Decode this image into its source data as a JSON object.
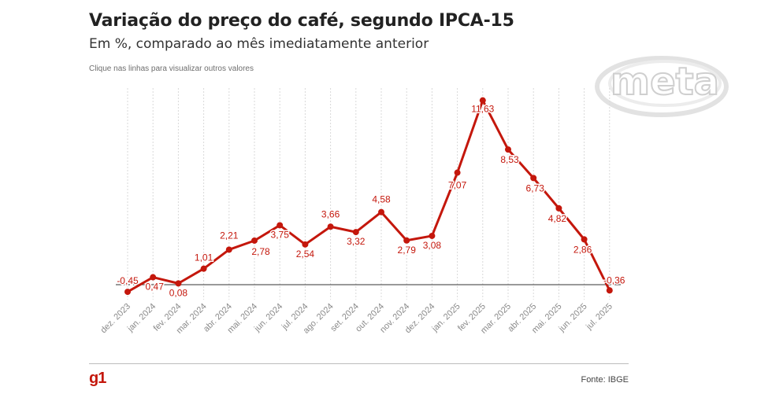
{
  "title": "Variação do preço do café, segundo IPCA-15",
  "subtitle": "Em %, comparado ao mês imediatamente anterior",
  "hint": "Clique nas linhas para visualizar outros valores",
  "source": "Fonte: IBGE",
  "logo": "g1",
  "watermark_text": "meta",
  "colors": {
    "series": "#c4170c",
    "baseline": "#333333",
    "grid": "#d9d9d9",
    "tick_label": "#8a8a8a"
  },
  "chart_data": {
    "type": "line",
    "title": "Variação do preço do café, segundo IPCA-15",
    "subtitle": "Em %, comparado ao mês imediatamente anterior",
    "xlabel": "",
    "ylabel": "",
    "ylim": [
      -0.5,
      12
    ],
    "grid": "vertical dotted",
    "legend": "none",
    "categories": [
      "dez. 2023",
      "jan. 2024",
      "fev. 2024",
      "mar. 2024",
      "abr. 2024",
      "mai. 2024",
      "jun. 2024",
      "jul. 2024",
      "ago. 2024",
      "set. 2024",
      "out. 2024",
      "nov. 2024",
      "dez. 2024",
      "jan. 2025",
      "fev. 2025",
      "mar. 2025",
      "abr. 2025",
      "mai. 2025",
      "jun. 2025",
      "jul. 2025"
    ],
    "values": [
      -0.45,
      0.47,
      0.08,
      1.01,
      2.21,
      2.78,
      3.75,
      2.54,
      3.66,
      3.32,
      4.58,
      2.79,
      3.08,
      7.07,
      11.63,
      8.53,
      6.73,
      4.82,
      2.86,
      -0.36
    ],
    "labels": [
      "-0,45",
      "0,47",
      "0,08",
      "1,01",
      "2,21",
      "2,78",
      "3,75",
      "2,54",
      "3,66",
      "3,32",
      "4,58",
      "2,79",
      "3,08",
      "7,07",
      "11,63",
      "8,53",
      "6,73",
      "4,82",
      "2,86",
      "-0,36"
    ]
  }
}
